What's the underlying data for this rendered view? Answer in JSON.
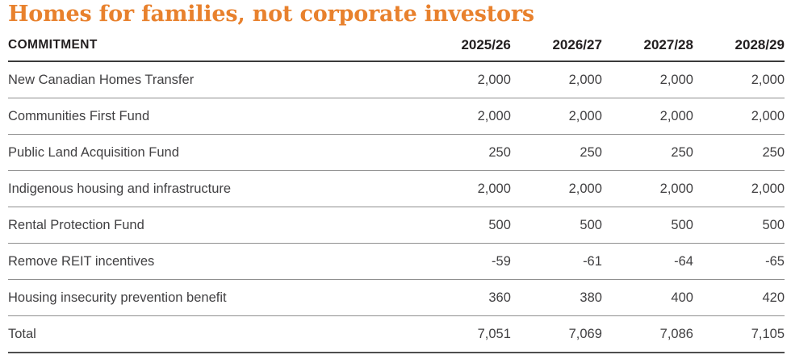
{
  "title": "Homes for families, not corporate investors",
  "colors": {
    "title_orange": "#e8812d",
    "header_text": "#221e1f",
    "body_text": "#414042",
    "header_rule": "#3a3a3a",
    "row_rule": "#8f8f8f",
    "total_rule": "#4f4f4f"
  },
  "table": {
    "header_label": "COMMITMENT",
    "columns": [
      "2025/26",
      "2026/27",
      "2027/28",
      "2028/29"
    ],
    "rows": [
      {
        "label": "New Canadian Homes Transfer",
        "values": [
          "2,000",
          "2,000",
          "2,000",
          "2,000"
        ]
      },
      {
        "label": "Communities First Fund",
        "values": [
          "2,000",
          "2,000",
          "2,000",
          "2,000"
        ]
      },
      {
        "label": "Public Land Acquisition Fund",
        "values": [
          "250",
          "250",
          "250",
          "250"
        ]
      },
      {
        "label": "Indigenous housing and infrastructure",
        "values": [
          "2,000",
          "2,000",
          "2,000",
          "2,000"
        ]
      },
      {
        "label": "Rental Protection Fund",
        "values": [
          "500",
          "500",
          "500",
          "500"
        ]
      },
      {
        "label": "Remove REIT incentives",
        "values": [
          "-59",
          "-61",
          "-64",
          "-65"
        ]
      },
      {
        "label": "Housing insecurity prevention benefit",
        "values": [
          "360",
          "380",
          "400",
          "420"
        ]
      },
      {
        "label": "Total",
        "values": [
          "7,051",
          "7,069",
          "7,086",
          "7,105"
        ]
      }
    ]
  }
}
